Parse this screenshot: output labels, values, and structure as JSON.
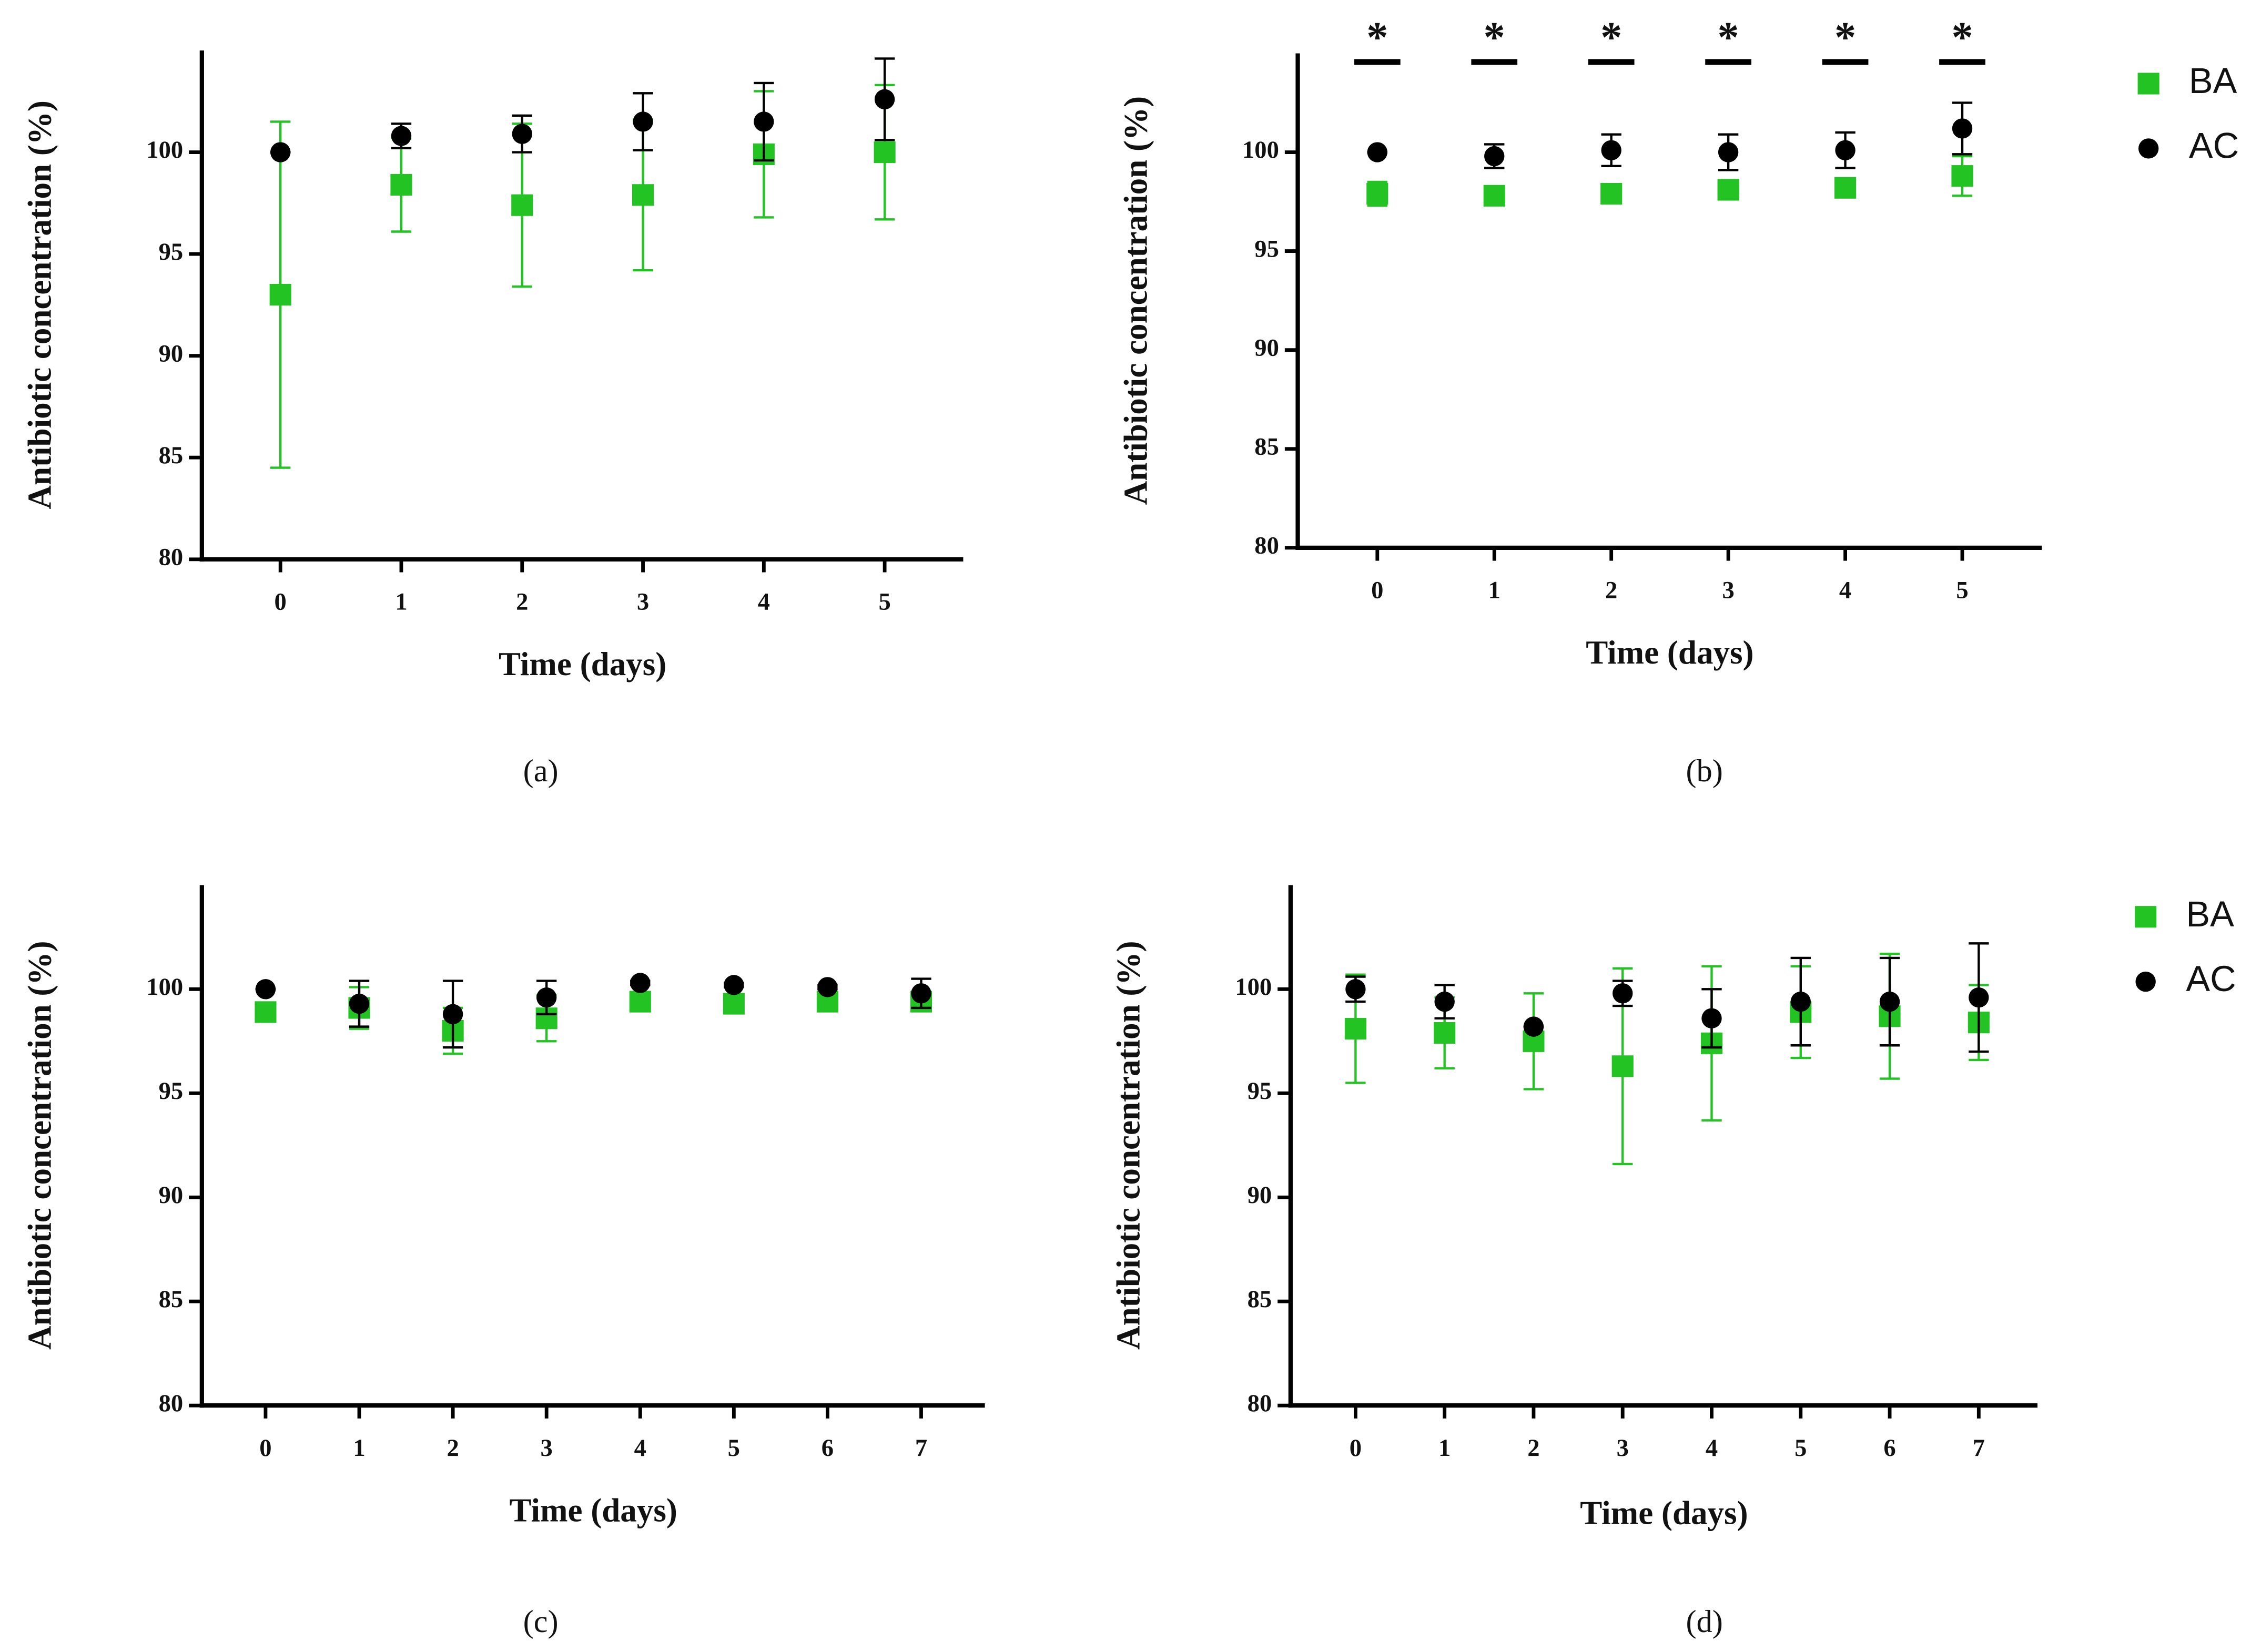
{
  "chart_data": [
    {
      "type": "scatter",
      "panel_label": "(a)",
      "x_label": "Time (days)",
      "y_label": "Antibiotic concentration (%)",
      "x": [
        0,
        1,
        2,
        3,
        4,
        5
      ],
      "xlim": [
        -0.65,
        5.65
      ],
      "xticks": [
        0,
        1,
        2,
        3,
        4,
        5
      ],
      "ylim": [
        80,
        105
      ],
      "yticks": [
        80,
        85,
        90,
        95,
        100
      ],
      "series": [
        {
          "name": "BA",
          "color": "#22c322",
          "marker": "square",
          "values": [
            93.0,
            98.4,
            97.4,
            97.9,
            99.9,
            100.0
          ],
          "errors": [
            8.5,
            2.3,
            4.0,
            3.7,
            3.1,
            3.3
          ]
        },
        {
          "name": "AC",
          "color": "#000000",
          "marker": "circle",
          "values": [
            100.0,
            100.8,
            100.9,
            101.5,
            101.5,
            102.6
          ],
          "errors": [
            0,
            0.6,
            0.9,
            1.4,
            1.9,
            2.0
          ]
        }
      ]
    },
    {
      "type": "scatter",
      "panel_label": "(b)",
      "x_label": "Time (days)",
      "y_label": "Antibiotic concentration (%)",
      "x": [
        0,
        1,
        2,
        3,
        4,
        5
      ],
      "xlim": [
        -0.68,
        5.68
      ],
      "xticks": [
        0,
        1,
        2,
        3,
        4,
        5
      ],
      "ylim": [
        80,
        105
      ],
      "yticks": [
        80,
        85,
        90,
        95,
        100
      ],
      "legend": "outside right",
      "annotations": [
        {
          "x": 0,
          "label": "*"
        },
        {
          "x": 1,
          "label": "*"
        },
        {
          "x": 2,
          "label": "*"
        },
        {
          "x": 3,
          "label": "*"
        },
        {
          "x": 4,
          "label": "*"
        },
        {
          "x": 5,
          "label": "*"
        }
      ],
      "series": [
        {
          "name": "BA",
          "color": "#22c322",
          "marker": "square",
          "values": [
            97.9,
            97.8,
            97.9,
            98.1,
            98.2,
            98.8
          ],
          "errors": [
            0.6,
            0.3,
            0.3,
            0.2,
            0.2,
            1.0
          ]
        },
        {
          "name": "AC",
          "color": "#000000",
          "marker": "circle",
          "values": [
            100.0,
            99.8,
            100.1,
            100.0,
            100.1,
            101.2
          ],
          "errors": [
            0,
            0.6,
            0.8,
            0.9,
            0.9,
            1.3
          ]
        }
      ]
    },
    {
      "type": "scatter",
      "panel_label": "(c)",
      "x_label": "Time (days)",
      "y_label": "Antibiotic concentration (%)",
      "x": [
        0,
        1,
        2,
        3,
        4,
        5,
        6,
        7
      ],
      "xlim": [
        -0.68,
        7.68
      ],
      "xticks": [
        0,
        1,
        2,
        3,
        4,
        5,
        6,
        7
      ],
      "ylim": [
        80,
        105
      ],
      "yticks": [
        80,
        85,
        90,
        95,
        100
      ],
      "series": [
        {
          "name": "BA",
          "color": "#22c322",
          "marker": "square",
          "values": [
            98.9,
            99.1,
            98.0,
            98.6,
            99.4,
            99.3,
            99.4,
            99.4
          ],
          "errors": [
            0.3,
            1.0,
            1.1,
            1.1,
            0.2,
            0.4,
            0.4,
            0.3
          ]
        },
        {
          "name": "AC",
          "color": "#000000",
          "marker": "circle",
          "values": [
            100.0,
            99.3,
            98.8,
            99.6,
            100.3,
            100.2,
            100.1,
            99.8
          ],
          "errors": [
            0,
            1.1,
            1.6,
            0.8,
            0.1,
            0.1,
            0.1,
            0.7
          ]
        }
      ]
    },
    {
      "type": "scatter",
      "panel_label": "(d)",
      "x_label": "Time (days)",
      "y_label": "Antibiotic concentration (%)",
      "x": [
        0,
        1,
        2,
        3,
        4,
        5,
        6,
        7
      ],
      "xlim": [
        -0.73,
        7.66
      ],
      "xticks": [
        0,
        1,
        2,
        3,
        4,
        5,
        6,
        7
      ],
      "ylim": [
        80,
        105
      ],
      "yticks": [
        80,
        85,
        90,
        95,
        100
      ],
      "legend": "outside right",
      "series": [
        {
          "name": "BA",
          "color": "#22c322",
          "marker": "square",
          "values": [
            98.1,
            97.9,
            97.5,
            96.3,
            97.4,
            98.9,
            98.7,
            98.4
          ],
          "errors": [
            2.6,
            1.7,
            2.3,
            4.7,
            3.7,
            2.2,
            3.0,
            1.8
          ]
        },
        {
          "name": "AC",
          "color": "#000000",
          "marker": "circle",
          "values": [
            100.0,
            99.4,
            98.2,
            99.8,
            98.6,
            99.4,
            99.4,
            99.6
          ],
          "errors": [
            0.6,
            0.8,
            0,
            0.6,
            1.4,
            2.1,
            2.1,
            2.6
          ]
        }
      ]
    }
  ]
}
